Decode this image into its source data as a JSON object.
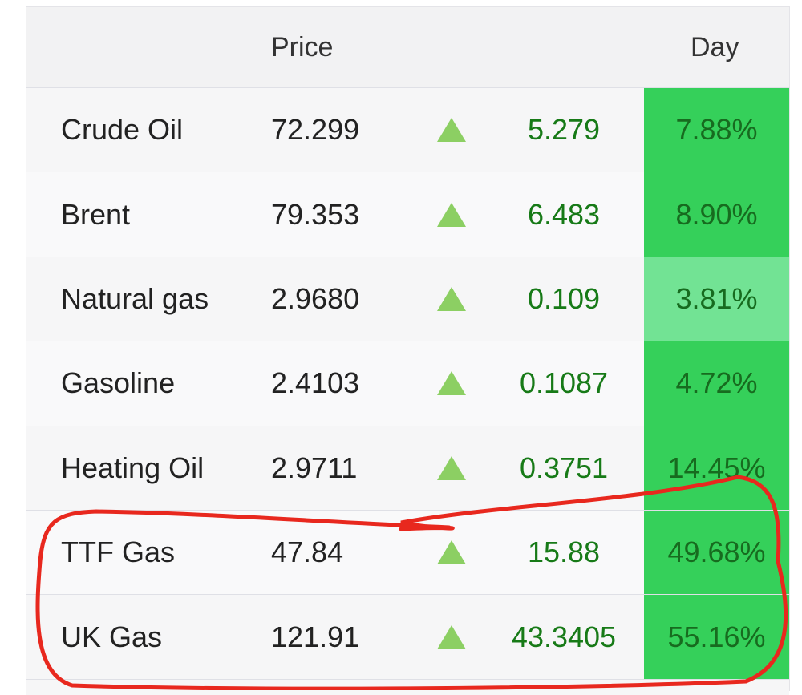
{
  "header": {
    "price": "Price",
    "day": "Day"
  },
  "rows": [
    {
      "name": "Crude Oil",
      "price": "72.299",
      "change": "5.279",
      "day": "7.88%",
      "color": "#35d05a"
    },
    {
      "name": "Brent",
      "price": "79.353",
      "change": "6.483",
      "day": "8.90%",
      "color": "#35d05a"
    },
    {
      "name": "Natural gas",
      "price": "2.9680",
      "change": "0.109",
      "day": "3.81%",
      "color": "#72e394"
    },
    {
      "name": "Gasoline",
      "price": "2.4103",
      "change": "0.1087",
      "day": "4.72%",
      "color": "#35d05a"
    },
    {
      "name": "Heating Oil",
      "price": "2.9711",
      "change": "0.3751",
      "day": "14.45%",
      "color": "#35d05a"
    },
    {
      "name": "TTF Gas",
      "price": "47.84",
      "change": "15.88",
      "day": "49.68%",
      "color": "#35d05a"
    },
    {
      "name": "UK Gas",
      "price": "121.91",
      "change": "43.3405",
      "day": "55.16%",
      "color": "#35d05a"
    }
  ]
}
